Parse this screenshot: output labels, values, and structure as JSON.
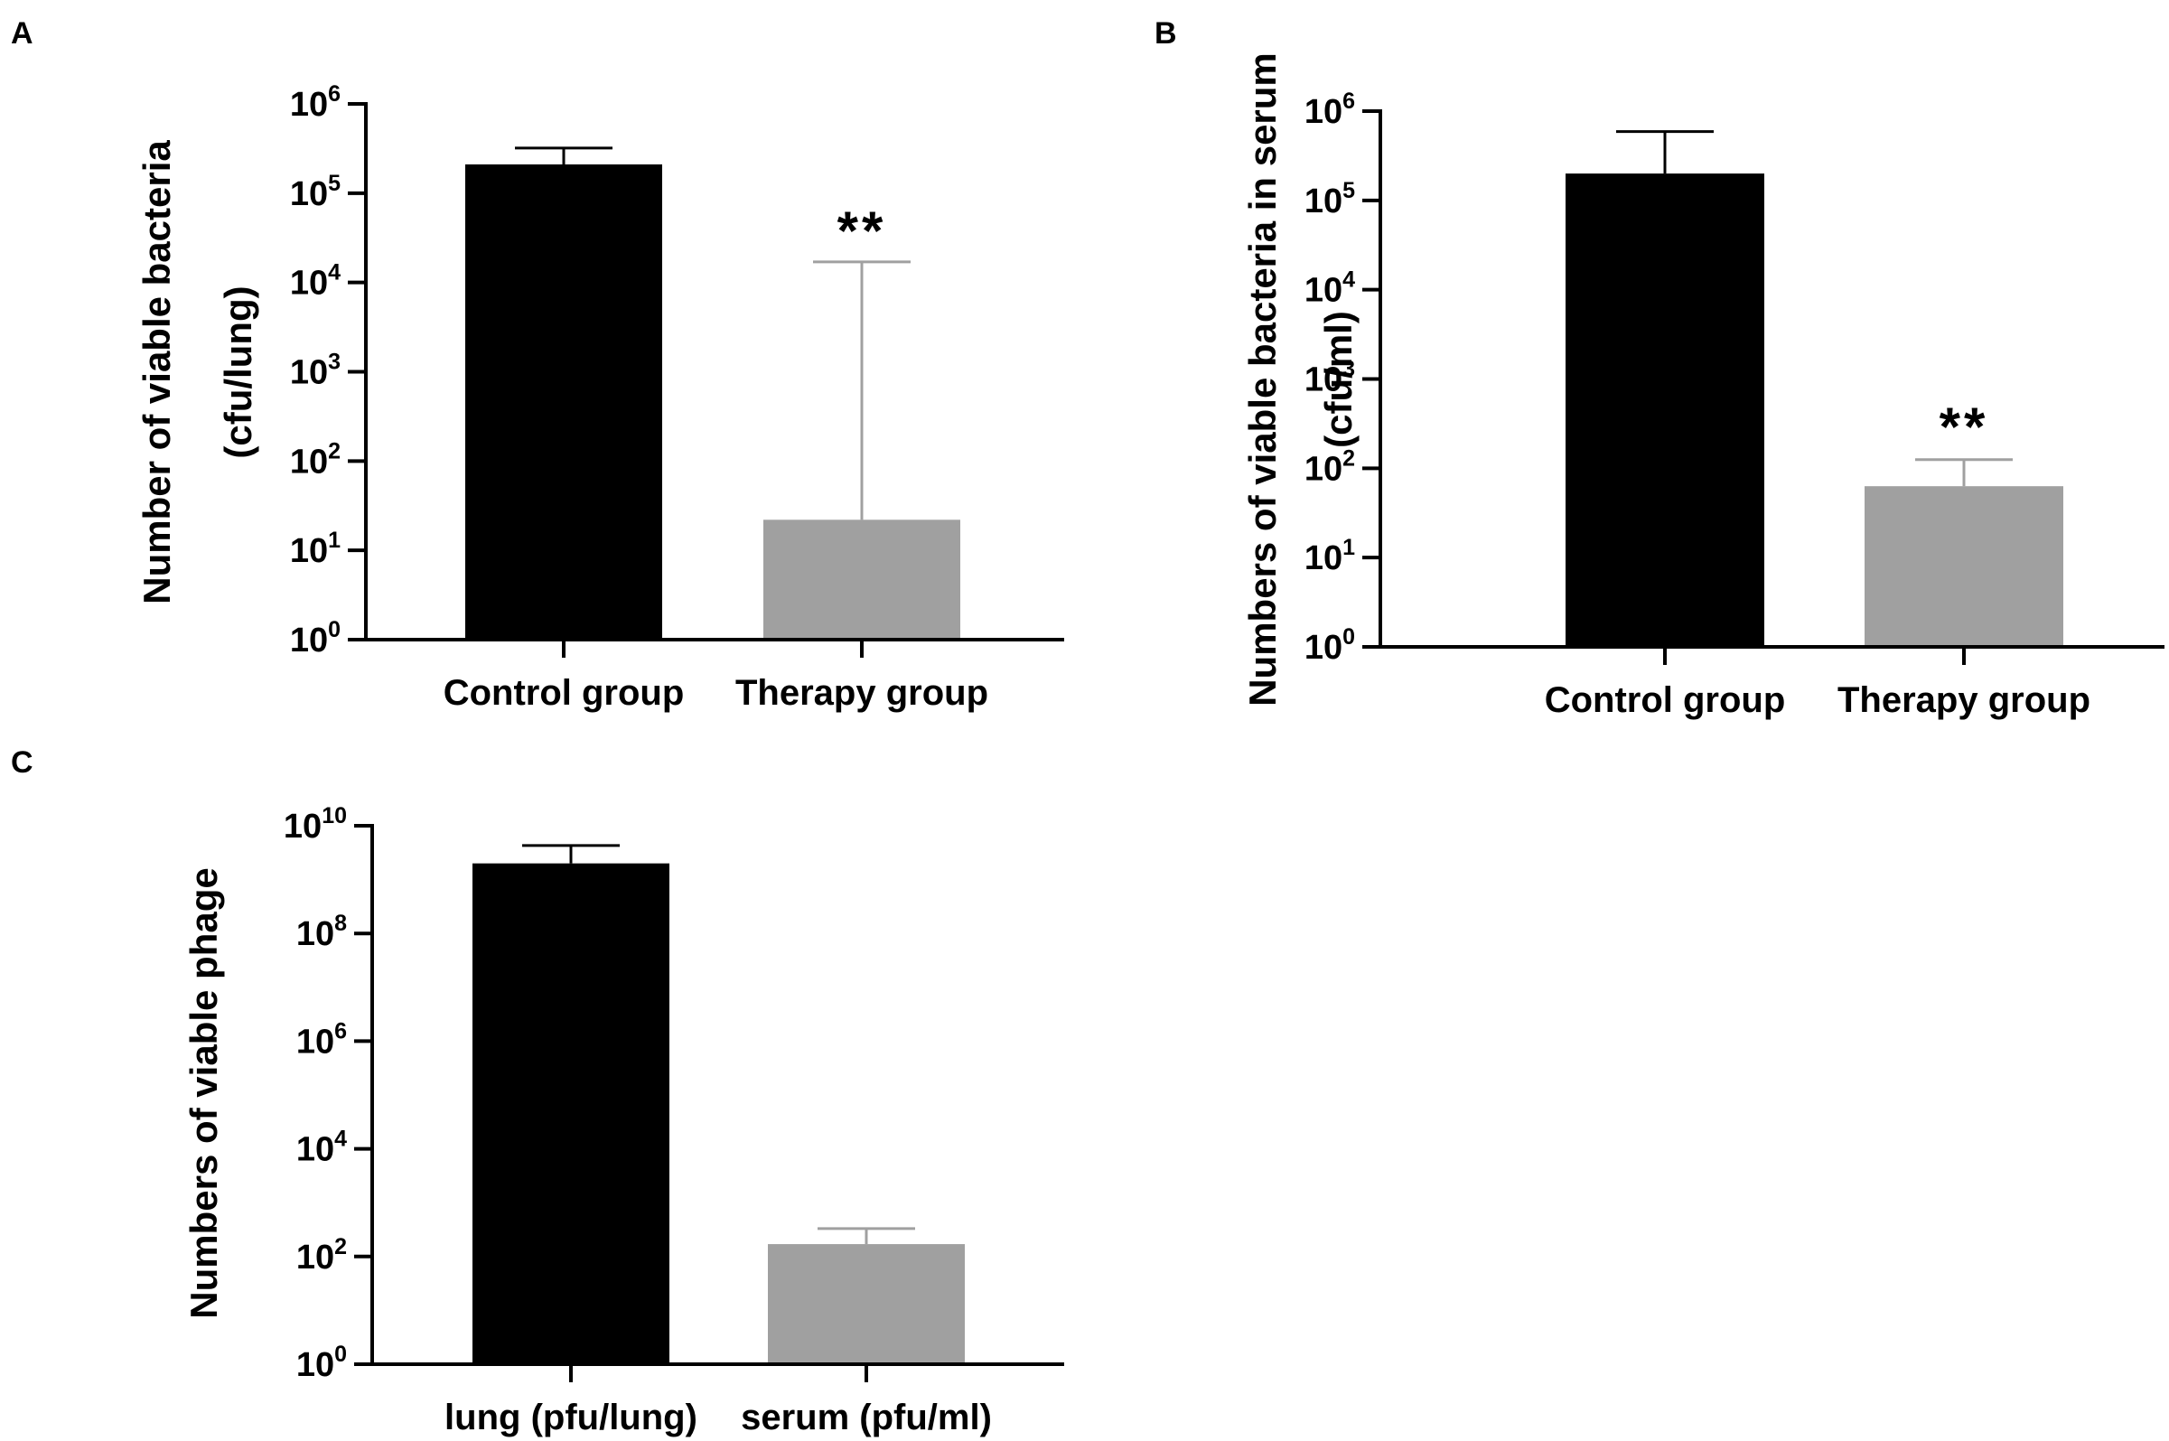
{
  "figure": {
    "panels": [
      "A",
      "B",
      "C"
    ]
  },
  "chart_data": [
    {
      "panel": "A",
      "type": "bar",
      "scale": "log10",
      "categories": [
        "Control group",
        "Therapy group"
      ],
      "values": [
        210000,
        22
      ],
      "error_upper": [
        320000,
        17000
      ],
      "colors": [
        "#000000",
        "#a0a0a0"
      ],
      "ylabel": [
        "Number of viable bacteria",
        "(cfu/lung)"
      ],
      "xlabel": "",
      "ylim": [
        1,
        1000000
      ],
      "yticks": [
        {
          "base": "10",
          "exp": "0"
        },
        {
          "base": "10",
          "exp": "1"
        },
        {
          "base": "10",
          "exp": "2"
        },
        {
          "base": "10",
          "exp": "3"
        },
        {
          "base": "10",
          "exp": "4"
        },
        {
          "base": "10",
          "exp": "5"
        },
        {
          "base": "10",
          "exp": "6"
        }
      ],
      "annotations": [
        {
          "category_index": 1,
          "text": "**"
        }
      ]
    },
    {
      "panel": "B",
      "type": "bar",
      "scale": "log10",
      "categories": [
        "Control group",
        "Therapy group"
      ],
      "values": [
        200000,
        63
      ],
      "error_upper": [
        590000,
        125
      ],
      "colors": [
        "#000000",
        "#a0a0a0"
      ],
      "ylabel": [
        "Numbers of viable bacteria in serum",
        "(cfu/ml)"
      ],
      "xlabel": "",
      "ylim": [
        1,
        1000000
      ],
      "yticks": [
        {
          "base": "10",
          "exp": "0"
        },
        {
          "base": "10",
          "exp": "1"
        },
        {
          "base": "10",
          "exp": "2"
        },
        {
          "base": "10",
          "exp": "3"
        },
        {
          "base": "10",
          "exp": "4"
        },
        {
          "base": "10",
          "exp": "5"
        },
        {
          "base": "10",
          "exp": "6"
        }
      ],
      "annotations": [
        {
          "category_index": 1,
          "text": "**"
        }
      ]
    },
    {
      "panel": "C",
      "type": "bar",
      "scale": "log10",
      "categories": [
        "lung (pfu/lung)",
        "serum (pfu/ml)"
      ],
      "values": [
        2000000000,
        170
      ],
      "error_upper": [
        4300000000,
        330
      ],
      "colors": [
        "#000000",
        "#a0a0a0"
      ],
      "ylabel": [
        "Numbers of viable phage"
      ],
      "xlabel": "",
      "ylim": [
        1,
        10000000000
      ],
      "yticks": [
        {
          "base": "10",
          "exp": "0"
        },
        {
          "base": "10",
          "exp": "2"
        },
        {
          "base": "10",
          "exp": "4"
        },
        {
          "base": "10",
          "exp": "6"
        },
        {
          "base": "10",
          "exp": "8"
        },
        {
          "base": "10",
          "exp": "10"
        }
      ],
      "annotations": []
    }
  ]
}
